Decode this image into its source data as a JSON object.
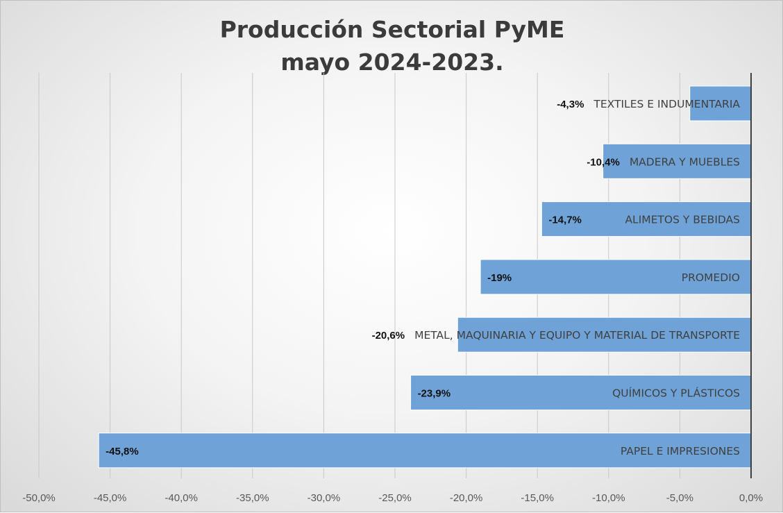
{
  "chart_data": {
    "type": "bar",
    "orientation": "horizontal",
    "title_lines": [
      "Producción Sectorial PyME",
      "mayo 2024-2023."
    ],
    "categories": [
      "TEXTILES E INDUMENTARIA",
      "MADERA Y MUEBLES",
      "ALIMETOS Y BEBIDAS",
      "PROMEDIO",
      "METAL, MAQUINARIA Y EQUIPO Y MATERIAL DE TRANSPORTE",
      "QUÍMICOS Y PLÁSTICOS",
      "PAPEL E IMPRESIONES"
    ],
    "values": [
      -4.3,
      -10.4,
      -14.7,
      -19,
      -20.6,
      -23.9,
      -45.8
    ],
    "data_labels": [
      "-4,3%",
      "-10,4%",
      "-14,7%",
      "-19%",
      "-20,6%",
      "-23,9%",
      "-45,8%"
    ],
    "xlim": [
      -50,
      0
    ],
    "x_ticks": [
      -50,
      -45,
      -40,
      -35,
      -30,
      -25,
      -20,
      -15,
      -10,
      -5,
      0
    ],
    "x_tick_labels": [
      "-50,0%",
      "-45,0%",
      "-40,0%",
      "-35,0%",
      "-30,0%",
      "-25,0%",
      "-20,0%",
      "-15,0%",
      "-10,0%",
      "-5,0%",
      "0,0%"
    ],
    "grid": true,
    "legend": "none",
    "bar_color": "#6fa2d6"
  }
}
